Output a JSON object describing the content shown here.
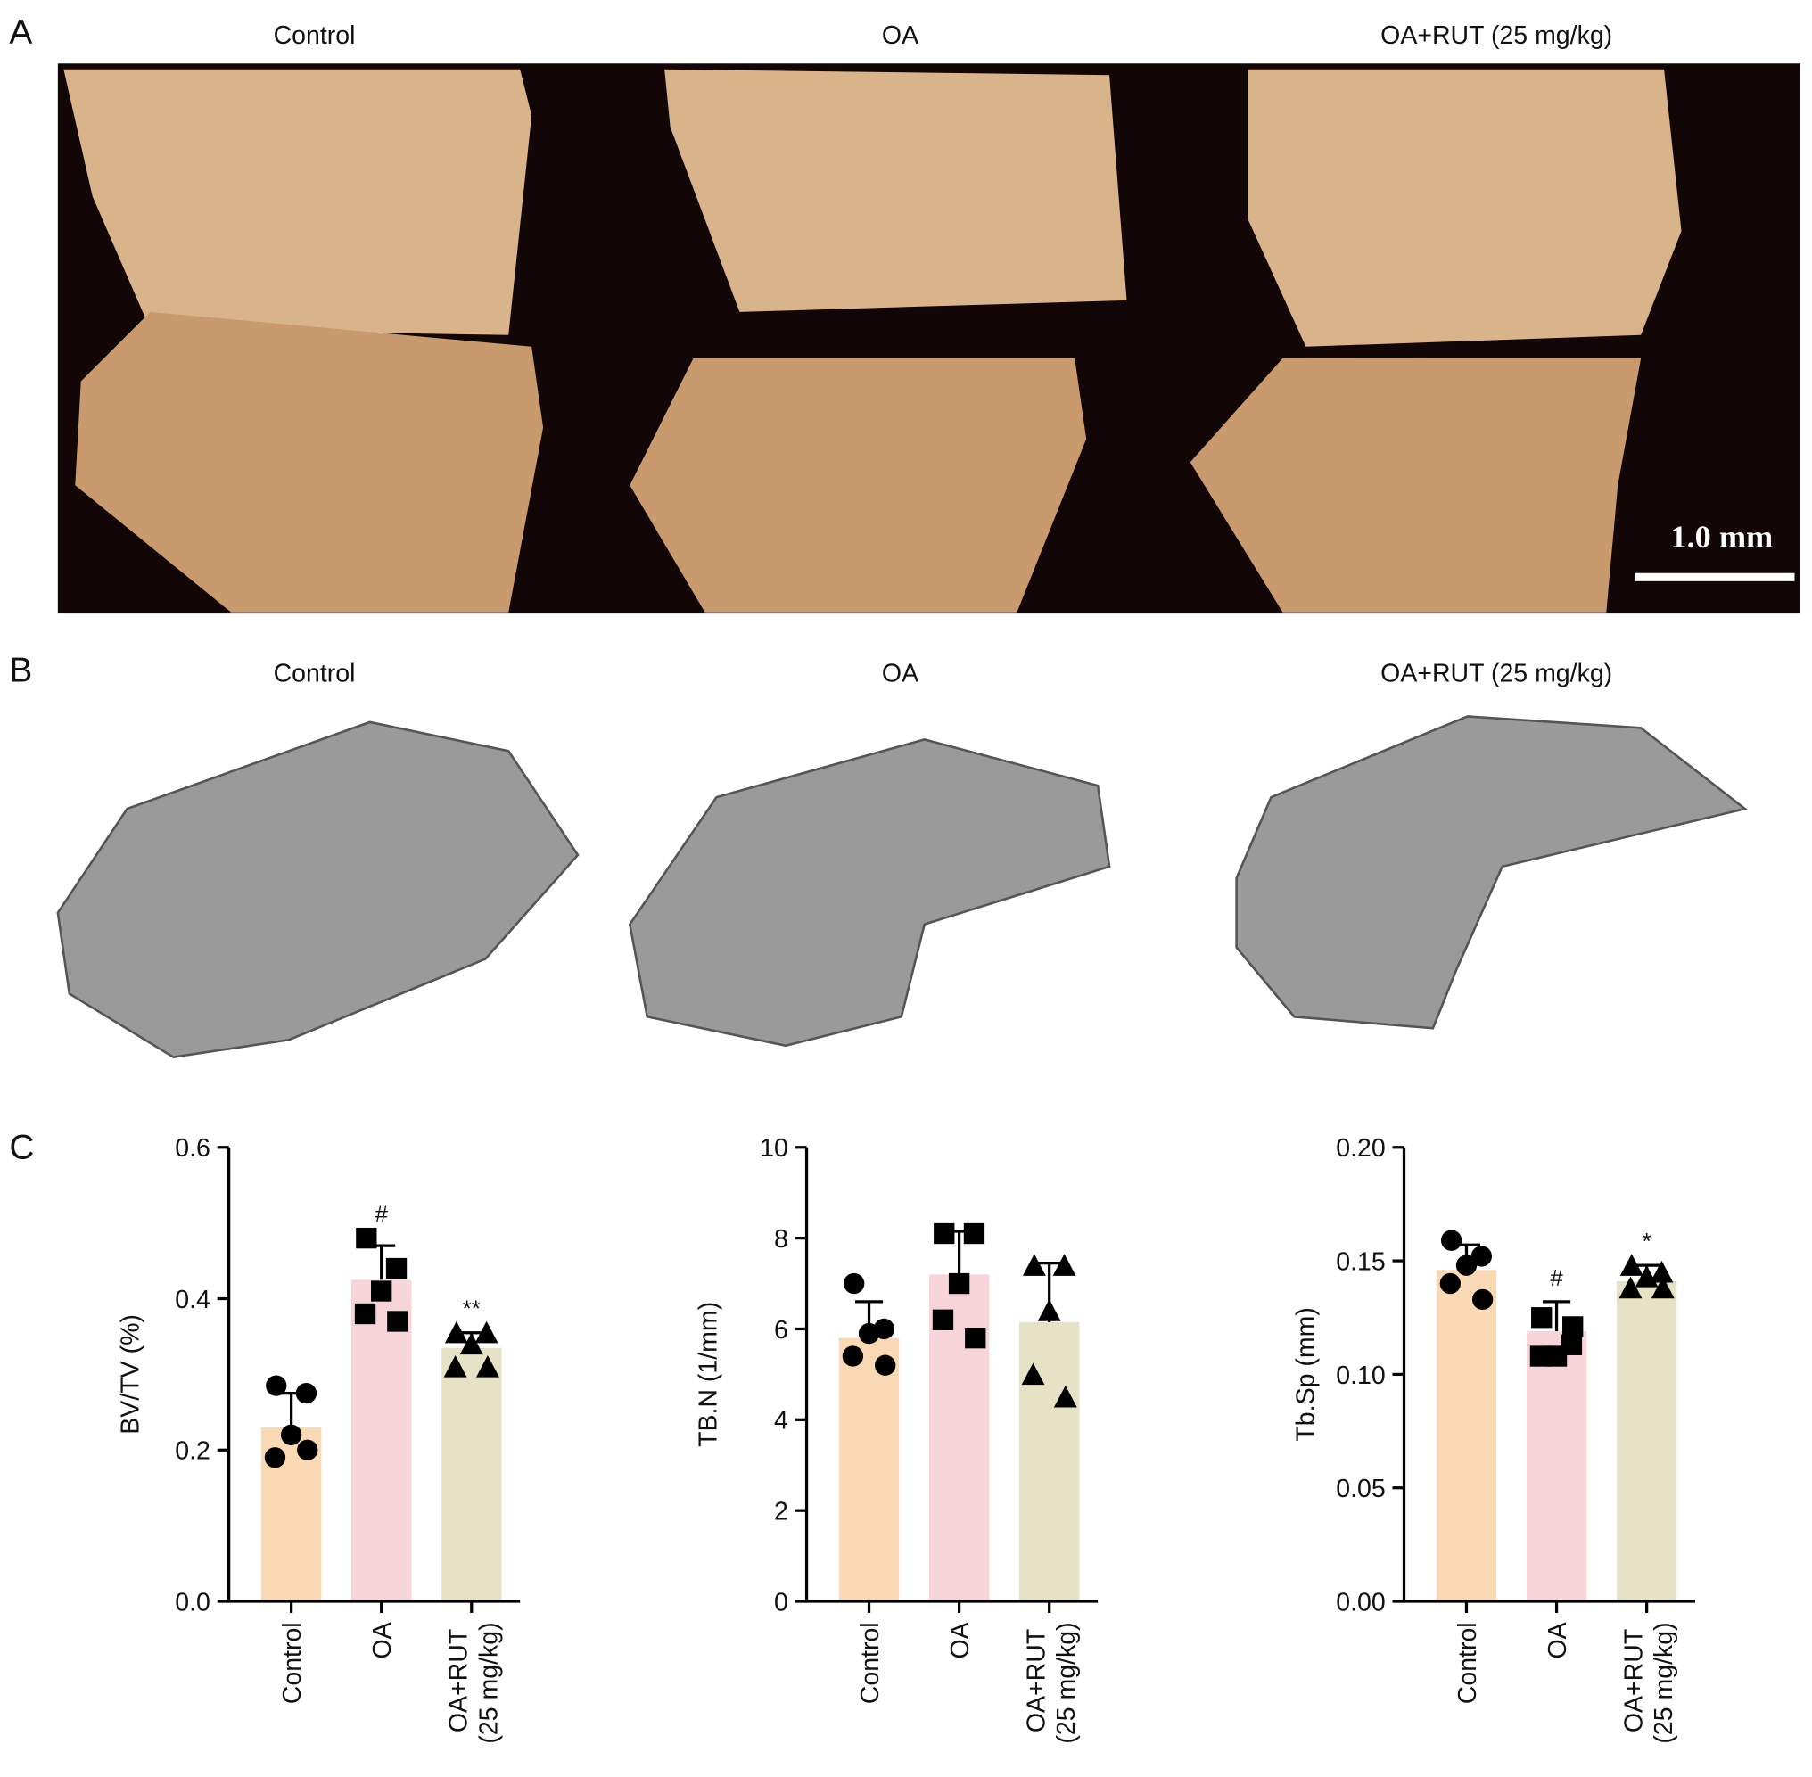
{
  "panel_a": {
    "letter": "A",
    "titles": [
      "Control",
      "OA",
      "OA+RUT (25 mg/kg)"
    ],
    "scale_bar": "1.0 mm"
  },
  "panel_b": {
    "letter": "B",
    "titles": [
      "Control",
      "OA",
      "OA+RUT (25 mg/kg)"
    ]
  },
  "panel_c": {
    "letter": "C"
  },
  "chart_data": [
    {
      "type": "bar",
      "y_label": "BV/TV (%)",
      "categories": [
        "Control",
        "OA",
        "OA+RUT (25 mg/kg)"
      ],
      "values": [
        0.23,
        0.425,
        0.335
      ],
      "errors": [
        0.045,
        0.045,
        0.02
      ],
      "points": [
        [
          0.285,
          0.275,
          0.22,
          0.19,
          0.2
        ],
        [
          0.48,
          0.44,
          0.41,
          0.38,
          0.37
        ],
        [
          0.355,
          0.355,
          0.34,
          0.31,
          0.31
        ]
      ],
      "annotations": [
        null,
        "#",
        "**"
      ],
      "colors": [
        "#f9d9b4",
        "#f7d4d9",
        "#e5e2c6"
      ],
      "markers": [
        "circle",
        "square",
        "triangle"
      ],
      "ylim": [
        0,
        0.6
      ],
      "yticks": [
        {
          "value": 0,
          "label": "0.0"
        },
        0.2,
        0.4,
        0.6
      ]
    },
    {
      "type": "bar",
      "y_label": "TB.N (1/mm)",
      "categories": [
        "Control",
        "OA",
        "OA+RUT (25 mg/kg)"
      ],
      "values": [
        5.8,
        7.2,
        6.15
      ],
      "errors": [
        0.8,
        0.95,
        1.3
      ],
      "points": [
        [
          7.0,
          6.0,
          5.9,
          5.4,
          5.2
        ],
        [
          8.1,
          8.1,
          7.0,
          6.2,
          5.8
        ],
        [
          7.4,
          7.4,
          6.4,
          5.0,
          4.5
        ]
      ],
      "annotations": [
        null,
        null,
        null
      ],
      "colors": [
        "#f9d9b4",
        "#f7d4d9",
        "#e5e2c6"
      ],
      "markers": [
        "circle",
        "square",
        "triangle"
      ],
      "ylim": [
        0,
        10
      ],
      "yticks": [
        0,
        2,
        4,
        6,
        8,
        10
      ]
    },
    {
      "type": "bar",
      "y_label": "Tb.Sp (mm)",
      "categories": [
        "Control",
        "OA",
        "OA+RUT (25 mg/kg)"
      ],
      "values": [
        0.146,
        0.119,
        0.141
      ],
      "errors": [
        0.011,
        0.013,
        0.007
      ],
      "points": [
        [
          0.159,
          0.152,
          0.148,
          0.14,
          0.133
        ],
        [
          0.125,
          0.113,
          0.108,
          0.108,
          0.121
        ],
        [
          0.148,
          0.145,
          0.143,
          0.138,
          0.138
        ]
      ],
      "annotations": [
        null,
        "#",
        "*"
      ],
      "colors": [
        "#f9d9b4",
        "#f7d4d9",
        "#e5e2c6"
      ],
      "markers": [
        "circle",
        "square",
        "triangle"
      ],
      "ylim": [
        0,
        0.2
      ],
      "yticks": [
        {
          "value": 0,
          "label": "0.00"
        },
        {
          "value": 0.05,
          "label": "0.05"
        },
        {
          "value": 0.1,
          "label": "0.10"
        },
        {
          "value": 0.15,
          "label": "0.15"
        },
        {
          "value": 0.2,
          "label": "0.20"
        }
      ]
    }
  ]
}
